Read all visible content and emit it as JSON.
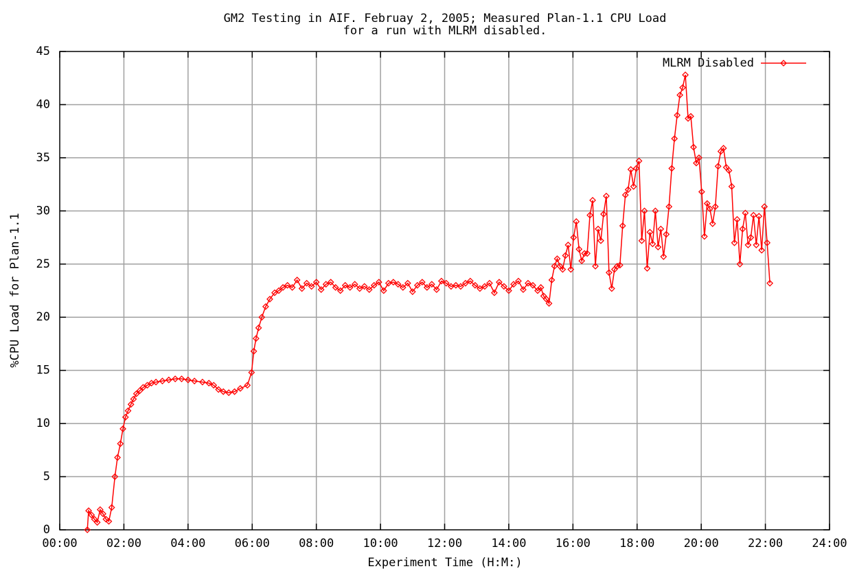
{
  "chart_data": {
    "type": "line",
    "title": [
      "GM2 Testing in AIF. Februay 2, 2005; Measured Plan-1.1 CPU Load",
      "for a run with MLRM disabled."
    ],
    "xlabel": "Experiment Time (H:M:)",
    "ylabel": "%CPU Load for Plan-1.1",
    "xlim": [
      0,
      24
    ],
    "xticks": [
      {
        "value": 0,
        "label": "00:00"
      },
      {
        "value": 2,
        "label": "02:00"
      },
      {
        "value": 4,
        "label": "04:00"
      },
      {
        "value": 6,
        "label": "06:00"
      },
      {
        "value": 8,
        "label": "08:00"
      },
      {
        "value": 10,
        "label": "10:00"
      },
      {
        "value": 12,
        "label": "12:00"
      },
      {
        "value": 14,
        "label": "14:00"
      },
      {
        "value": 16,
        "label": "16:00"
      },
      {
        "value": 18,
        "label": "18:00"
      },
      {
        "value": 20,
        "label": "20:00"
      },
      {
        "value": 22,
        "label": "22:00"
      },
      {
        "value": 24,
        "label": "24:00"
      }
    ],
    "ylim": [
      0,
      45
    ],
    "yticks": [
      0,
      5,
      10,
      15,
      20,
      25,
      30,
      35,
      40,
      45
    ],
    "grid": true,
    "legend": "top-right",
    "x": [
      0.86,
      0.9,
      0.99,
      1.08,
      1.17,
      1.26,
      1.35,
      1.44,
      1.53,
      1.62,
      1.72,
      1.8,
      1.89,
      1.97,
      2.05,
      2.13,
      2.22,
      2.3,
      2.39,
      2.5,
      2.6,
      2.73,
      2.86,
      3.0,
      3.2,
      3.4,
      3.6,
      3.8,
      4.0,
      4.2,
      4.45,
      4.65,
      4.8,
      4.95,
      5.1,
      5.27,
      5.45,
      5.63,
      5.85,
      5.98,
      6.05,
      6.12,
      6.2,
      6.3,
      6.42,
      6.55,
      6.7,
      6.83,
      6.96,
      7.1,
      7.25,
      7.4,
      7.55,
      7.7,
      7.85,
      8.0,
      8.15,
      8.3,
      8.45,
      8.6,
      8.75,
      8.9,
      9.05,
      9.2,
      9.35,
      9.5,
      9.65,
      9.8,
      9.95,
      10.1,
      10.25,
      10.4,
      10.55,
      10.7,
      10.85,
      11.0,
      11.15,
      11.3,
      11.45,
      11.6,
      11.75,
      11.9,
      12.05,
      12.2,
      12.35,
      12.5,
      12.65,
      12.8,
      12.95,
      13.1,
      13.25,
      13.4,
      13.55,
      13.7,
      13.85,
      14.0,
      14.15,
      14.3,
      14.45,
      14.6,
      14.75,
      14.9,
      15,
      15.085,
      15.17,
      15.255,
      15.34,
      15.425,
      15.51,
      15.595,
      15.68,
      15.765,
      15.85,
      15.935,
      16.02,
      16.105,
      16.19,
      16.275,
      16.36,
      16.445,
      16.53,
      16.615,
      16.7,
      16.785,
      16.87,
      16.955,
      17.04,
      17.125,
      17.21,
      17.295,
      17.38,
      17.465,
      17.55,
      17.635,
      17.72,
      17.805,
      17.89,
      17.975,
      18.06,
      18.145,
      18.23,
      18.315,
      18.4,
      18.485,
      18.57,
      18.655,
      18.74,
      18.825,
      18.91,
      18.995,
      19.08,
      19.165,
      19.25,
      19.335,
      19.42,
      19.505,
      19.59,
      19.675,
      19.76,
      19.845,
      19.93,
      20.015,
      20.1,
      20.185,
      20.27,
      20.355,
      20.44,
      20.525,
      20.61,
      20.695,
      20.78,
      20.865,
      20.95,
      21.035,
      21.12,
      21.205,
      21.29,
      21.375,
      21.46,
      21.545,
      21.63,
      21.715,
      21.8,
      21.885,
      21.97,
      22.055,
      22.14
    ],
    "series": [
      {
        "name": "MLRM Disabled",
        "color": "#ff0000",
        "values": [
          0,
          1.8,
          1.4,
          1.0,
          0.7,
          1.9,
          1.5,
          1.0,
          0.8,
          2.1,
          5.0,
          6.8,
          8.1,
          9.5,
          10.6,
          11.2,
          11.8,
          12.3,
          12.8,
          13.1,
          13.4,
          13.6,
          13.8,
          13.9,
          14.0,
          14.1,
          14.2,
          14.2,
          14.1,
          14.0,
          13.9,
          13.8,
          13.6,
          13.2,
          13.0,
          12.9,
          13.0,
          13.3,
          13.6,
          14.8,
          16.8,
          18.0,
          19.0,
          20.0,
          21.0,
          21.7,
          22.3,
          22.5,
          22.8,
          23.0,
          22.8,
          23.5,
          22.7,
          23.2,
          22.9,
          23.3,
          22.6,
          23.1,
          23.3,
          22.8,
          22.5,
          23.0,
          22.8,
          23.1,
          22.7,
          22.9,
          22.6,
          23.0,
          23.3,
          22.5,
          23.2,
          23.3,
          23.1,
          22.8,
          23.2,
          22.4,
          23.0,
          23.3,
          22.8,
          23.1,
          22.6,
          23.4,
          23.2,
          22.9,
          23.0,
          22.9,
          23.2,
          23.4,
          23.0,
          22.7,
          22.9,
          23.2,
          22.3,
          23.3,
          22.9,
          22.5,
          23.1,
          23.4,
          22.6,
          23.2,
          23.0,
          22.5,
          22.8,
          22.0,
          21.7,
          21.3,
          23.5,
          24.8,
          25.5,
          24.8,
          24.5,
          25.8,
          26.8,
          24.5,
          27.5,
          29.0,
          26.4,
          25.3,
          26.0,
          26.0,
          29.6,
          31.0,
          24.8,
          28.3,
          27.2,
          29.7,
          31.4,
          24.2,
          22.7,
          24.5,
          24.8,
          24.9,
          28.6,
          31.5,
          32.0,
          33.9,
          32.3,
          34.0,
          34.7,
          27.2,
          30.0,
          24.6,
          28.0,
          26.9,
          30.0,
          26.6,
          28.3,
          25.7,
          27.8,
          30.4,
          34.0,
          36.8,
          39.0,
          40.9,
          41.6,
          42.8,
          38.7,
          38.9,
          36.0,
          34.5,
          35.0,
          31.8,
          27.6,
          30.7,
          30.2,
          28.8,
          30.4,
          34.2,
          35.6,
          35.9,
          34.1,
          33.8,
          32.3,
          27.0,
          29.2,
          25.0,
          28.3,
          29.8,
          26.8,
          27.5,
          29.6,
          26.8,
          29.5,
          26.3,
          30.4,
          27.0,
          23.2
        ]
      }
    ]
  }
}
